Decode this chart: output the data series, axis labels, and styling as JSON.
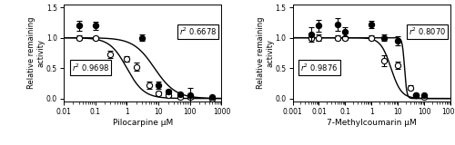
{
  "panel1": {
    "xlabel": "Pilocarpine μM",
    "ylabel": "Relative remaining\nactivity",
    "xlim": [
      0.01,
      1000
    ],
    "ylim": [
      -0.05,
      1.55
    ],
    "yticks": [
      0.0,
      0.5,
      1.0,
      1.5
    ],
    "xtick_labels": [
      "0.01",
      "0.1",
      "1",
      "10",
      "100",
      "1000"
    ],
    "xtick_vals": [
      0.01,
      0.1,
      1,
      10,
      100,
      1000
    ],
    "closed_x": [
      0.03,
      0.1,
      3,
      10,
      20,
      50,
      100,
      500
    ],
    "closed_y": [
      1.2,
      1.2,
      1.0,
      0.22,
      0.12,
      0.07,
      0.05,
      0.03
    ],
    "closed_yerr": [
      0.08,
      0.07,
      0.05,
      0.06,
      0.03,
      0.02,
      0.12,
      0.01
    ],
    "open_x": [
      0.03,
      0.1,
      0.3,
      1.0,
      2.0,
      5.0,
      10,
      20,
      50,
      100,
      500
    ],
    "open_y": [
      1.0,
      1.0,
      0.72,
      0.65,
      0.52,
      0.22,
      0.08,
      0.05,
      0.02,
      0.02,
      0.0
    ],
    "open_yerr": [
      0.04,
      0.03,
      0.06,
      0.05,
      0.07,
      0.06,
      0.03,
      0.02,
      0.01,
      0.02,
      0.01
    ],
    "r2_closed": "r2 0.6678",
    "r2_open": "r2 0.9698",
    "fit_closed_ic50": 7.5,
    "fit_closed_hill": 1.3,
    "fit_open_ic50": 1.0,
    "fit_open_hill": 1.6
  },
  "panel2": {
    "xlabel": "7-Methylcoumarin μM",
    "ylabel": "Relative remaining\nactivity",
    "xlim": [
      0.001,
      1000
    ],
    "ylim": [
      -0.05,
      1.55
    ],
    "yticks": [
      0.0,
      0.5,
      1.0,
      1.5
    ],
    "xtick_labels": [
      "0.001",
      "0.01",
      "0.1",
      "1",
      "10",
      "100",
      "1000"
    ],
    "xtick_vals": [
      0.001,
      0.01,
      0.1,
      1,
      10,
      100,
      1000
    ],
    "closed_x": [
      0.005,
      0.01,
      0.05,
      0.1,
      1,
      3,
      10,
      50,
      100
    ],
    "closed_y": [
      1.05,
      1.2,
      1.22,
      1.1,
      1.22,
      1.0,
      0.95,
      0.05,
      0.05
    ],
    "closed_yerr": [
      0.12,
      0.1,
      0.1,
      0.08,
      0.06,
      0.05,
      0.08,
      0.02,
      0.02
    ],
    "open_x": [
      0.005,
      0.01,
      0.05,
      0.1,
      1,
      3,
      10,
      30,
      50,
      100
    ],
    "open_y": [
      1.0,
      1.0,
      1.0,
      1.0,
      1.0,
      0.62,
      0.55,
      0.18,
      0.05,
      0.03
    ],
    "open_yerr": [
      0.04,
      0.05,
      0.04,
      0.03,
      0.04,
      0.09,
      0.06,
      0.04,
      0.02,
      0.02
    ],
    "r2_closed": "r2 0.8070",
    "r2_open": "r2 0.9876",
    "fit_closed_ic50": 18.0,
    "fit_closed_hill": 10.0,
    "fit_open_ic50": 5.5,
    "fit_open_hill": 2.2
  },
  "marker_size": 4.5,
  "line_color": "black",
  "capsize": 2,
  "elinewidth": 0.8,
  "linewidth": 1.0
}
